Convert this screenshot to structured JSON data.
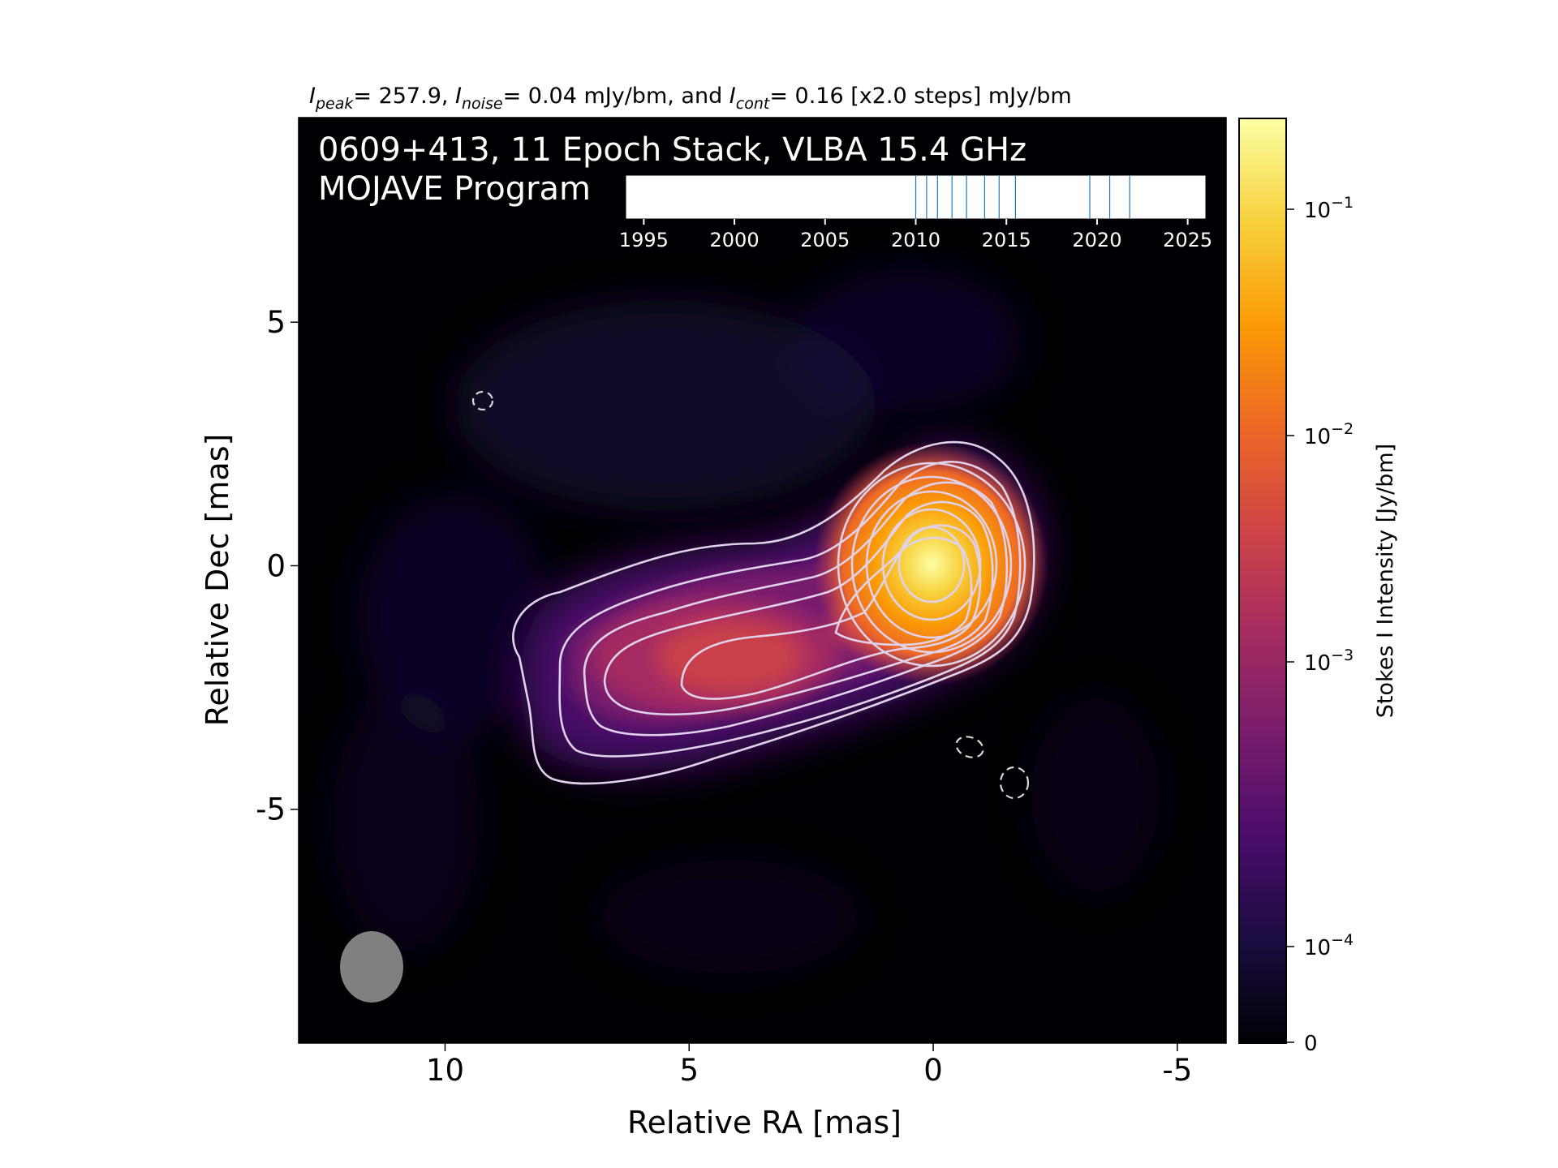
{
  "chart_data": {
    "type": "heatmap",
    "top_note": {
      "peak_var": "I",
      "peak_sub": "peak",
      "peak_value": "= 257.9, ",
      "noise_var": "I",
      "noise_sub": "noise",
      "noise_value": "= 0.04 mJy/bm, and ",
      "cont_var": "I",
      "cont_sub": "cont",
      "cont_value": "= 0.16 [x2.0 steps] mJy/bm"
    },
    "title_line1": "0609+413, 11 Epoch Stack, VLBA 15.4 GHz",
    "title_line2": "MOJAVE Program",
    "xlabel": "Relative RA [mas]",
    "ylabel": "Relative Dec [mas]",
    "x_ticks": [
      "10",
      "5",
      "0",
      "-5"
    ],
    "y_ticks": [
      "5",
      "0",
      "-5"
    ],
    "x_range": [
      13.0,
      -6.0
    ],
    "y_range": [
      -9.8,
      9.2
    ],
    "colorbar": {
      "label": "Stokes I Intensity [Jy/bm]",
      "scale": "log",
      "ticks": [
        {
          "base": "10",
          "exp": "−1"
        },
        {
          "base": "10",
          "exp": "−2"
        },
        {
          "base": "10",
          "exp": "−3"
        },
        {
          "base": "10",
          "exp": "−4"
        },
        {
          "base": "0",
          "exp": ""
        }
      ],
      "colormap": "inferno",
      "colors": [
        "#000004",
        "#1b0c41",
        "#4a0c6b",
        "#781c6d",
        "#a52c60",
        "#cf4446",
        "#ed6925",
        "#fb9b06",
        "#f7d13d",
        "#fcffa4"
      ]
    },
    "epoch_timeline": {
      "years": [
        "1995",
        "2000",
        "2005",
        "2010",
        "2015",
        "2020",
        "2025"
      ],
      "range": [
        1994.0,
        2026.0
      ],
      "epochs": [
        2010.0,
        2010.6,
        2011.2,
        2012.0,
        2012.8,
        2013.8,
        2014.6,
        2015.5,
        2019.6,
        2020.7,
        2021.8
      ],
      "line_color": "#1f77b4"
    },
    "core_position": [
      0.0,
      0.0
    ],
    "beam_color": "#808080",
    "contour_color": "#e0d2ea",
    "contour_levels_mJy": [
      0.16,
      0.32,
      0.64,
      1.28,
      2.56,
      5.12,
      10.24,
      20.48,
      40.96,
      81.92,
      163.84
    ]
  }
}
